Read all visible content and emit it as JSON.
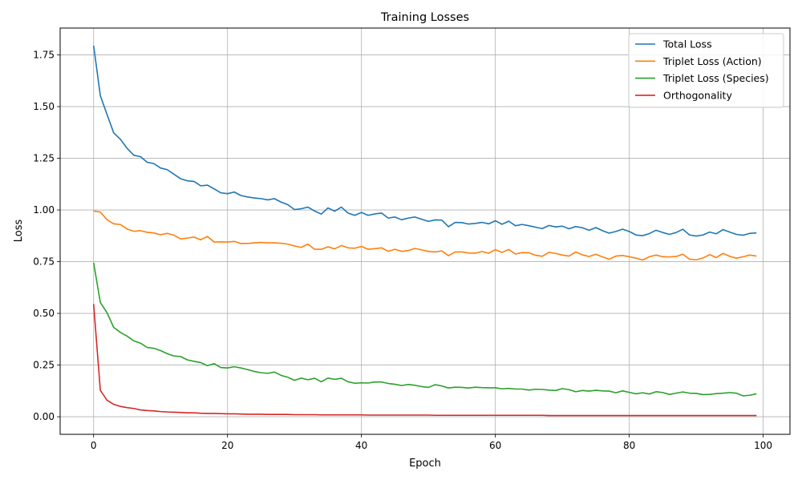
{
  "chart_data": {
    "type": "line",
    "title": "Training Losses",
    "xlabel": "Epoch",
    "ylabel": "Loss",
    "xlim": [
      -5,
      104
    ],
    "ylim": [
      -0.085,
      1.88
    ],
    "xticks": [
      0,
      20,
      40,
      60,
      80,
      100
    ],
    "xtick_labels": [
      "0",
      "20",
      "40",
      "60",
      "80",
      "100"
    ],
    "yticks": [
      0.0,
      0.25,
      0.5,
      0.75,
      1.0,
      1.25,
      1.5,
      1.75
    ],
    "ytick_labels": [
      "0.00",
      "0.25",
      "0.50",
      "0.75",
      "1.00",
      "1.25",
      "1.50",
      "1.75"
    ],
    "grid": true,
    "legend_position": "top-right",
    "series": [
      {
        "name": "Total Loss",
        "color": "#1f77b4",
        "values": [
          1.795,
          1.553,
          1.462,
          1.373,
          1.342,
          1.298,
          1.265,
          1.258,
          1.231,
          1.224,
          1.203,
          1.195,
          1.173,
          1.151,
          1.141,
          1.138,
          1.117,
          1.12,
          1.102,
          1.083,
          1.079,
          1.087,
          1.07,
          1.063,
          1.058,
          1.055,
          1.049,
          1.055,
          1.038,
          1.026,
          1.002,
          1.006,
          1.014,
          0.995,
          0.98,
          1.01,
          0.994,
          1.014,
          0.985,
          0.974,
          0.988,
          0.974,
          0.981,
          0.985,
          0.961,
          0.966,
          0.953,
          0.961,
          0.966,
          0.955,
          0.945,
          0.952,
          0.951,
          0.919,
          0.94,
          0.939,
          0.932,
          0.935,
          0.94,
          0.933,
          0.948,
          0.931,
          0.946,
          0.924,
          0.93,
          0.924,
          0.917,
          0.91,
          0.925,
          0.918,
          0.922,
          0.909,
          0.92,
          0.914,
          0.902,
          0.915,
          0.9,
          0.888,
          0.896,
          0.907,
          0.896,
          0.879,
          0.876,
          0.886,
          0.902,
          0.891,
          0.882,
          0.891,
          0.907,
          0.879,
          0.874,
          0.879,
          0.893,
          0.885,
          0.905,
          0.893,
          0.882,
          0.878,
          0.887,
          0.889
        ]
      },
      {
        "name": "Triplet Loss (Action)",
        "color": "#ff7f0e",
        "values": [
          0.995,
          0.99,
          0.953,
          0.933,
          0.93,
          0.908,
          0.897,
          0.9,
          0.892,
          0.889,
          0.88,
          0.887,
          0.878,
          0.86,
          0.864,
          0.869,
          0.856,
          0.872,
          0.845,
          0.846,
          0.845,
          0.848,
          0.838,
          0.838,
          0.841,
          0.843,
          0.841,
          0.841,
          0.839,
          0.835,
          0.826,
          0.819,
          0.835,
          0.81,
          0.81,
          0.822,
          0.812,
          0.828,
          0.817,
          0.815,
          0.824,
          0.81,
          0.813,
          0.817,
          0.8,
          0.81,
          0.8,
          0.804,
          0.814,
          0.807,
          0.8,
          0.797,
          0.802,
          0.779,
          0.797,
          0.797,
          0.792,
          0.791,
          0.799,
          0.791,
          0.808,
          0.795,
          0.809,
          0.787,
          0.794,
          0.793,
          0.781,
          0.776,
          0.795,
          0.79,
          0.782,
          0.777,
          0.797,
          0.783,
          0.775,
          0.786,
          0.773,
          0.762,
          0.777,
          0.78,
          0.774,
          0.767,
          0.758,
          0.774,
          0.782,
          0.774,
          0.773,
          0.775,
          0.786,
          0.762,
          0.759,
          0.768,
          0.784,
          0.77,
          0.79,
          0.776,
          0.767,
          0.774,
          0.782,
          0.777
        ]
      },
      {
        "name": "Triplet Loss (Species)",
        "color": "#2ca02c",
        "values": [
          0.745,
          0.553,
          0.503,
          0.432,
          0.408,
          0.39,
          0.367,
          0.356,
          0.335,
          0.331,
          0.32,
          0.305,
          0.294,
          0.291,
          0.275,
          0.268,
          0.262,
          0.247,
          0.257,
          0.238,
          0.236,
          0.242,
          0.236,
          0.228,
          0.219,
          0.213,
          0.21,
          0.216,
          0.2,
          0.191,
          0.176,
          0.187,
          0.179,
          0.186,
          0.169,
          0.187,
          0.181,
          0.186,
          0.169,
          0.162,
          0.164,
          0.163,
          0.168,
          0.168,
          0.161,
          0.157,
          0.151,
          0.156,
          0.152,
          0.146,
          0.142,
          0.155,
          0.149,
          0.139,
          0.143,
          0.142,
          0.139,
          0.143,
          0.141,
          0.14,
          0.14,
          0.135,
          0.137,
          0.134,
          0.134,
          0.129,
          0.133,
          0.132,
          0.129,
          0.127,
          0.136,
          0.131,
          0.121,
          0.127,
          0.124,
          0.128,
          0.125,
          0.124,
          0.116,
          0.125,
          0.118,
          0.111,
          0.116,
          0.11,
          0.121,
          0.117,
          0.108,
          0.114,
          0.12,
          0.114,
          0.113,
          0.107,
          0.108,
          0.112,
          0.114,
          0.117,
          0.114,
          0.101,
          0.104,
          0.111
        ]
      },
      {
        "name": "Orthogonality",
        "color": "#d62728",
        "values": [
          0.545,
          0.128,
          0.08,
          0.06,
          0.05,
          0.044,
          0.04,
          0.033,
          0.03,
          0.028,
          0.025,
          0.023,
          0.022,
          0.021,
          0.019,
          0.019,
          0.017,
          0.016,
          0.016,
          0.015,
          0.014,
          0.014,
          0.013,
          0.012,
          0.012,
          0.012,
          0.011,
          0.011,
          0.011,
          0.011,
          0.01,
          0.01,
          0.01,
          0.01,
          0.009,
          0.009,
          0.009,
          0.009,
          0.009,
          0.009,
          0.009,
          0.008,
          0.008,
          0.008,
          0.008,
          0.008,
          0.008,
          0.008,
          0.008,
          0.008,
          0.008,
          0.007,
          0.007,
          0.007,
          0.007,
          0.007,
          0.007,
          0.007,
          0.007,
          0.007,
          0.007,
          0.007,
          0.007,
          0.007,
          0.007,
          0.007,
          0.007,
          0.007,
          0.006,
          0.006,
          0.006,
          0.006,
          0.006,
          0.006,
          0.006,
          0.006,
          0.006,
          0.006,
          0.006,
          0.006,
          0.006,
          0.006,
          0.006,
          0.006,
          0.006,
          0.006,
          0.006,
          0.006,
          0.006,
          0.006,
          0.006,
          0.006,
          0.006,
          0.006,
          0.006,
          0.006,
          0.006,
          0.006,
          0.006,
          0.006
        ]
      }
    ]
  }
}
